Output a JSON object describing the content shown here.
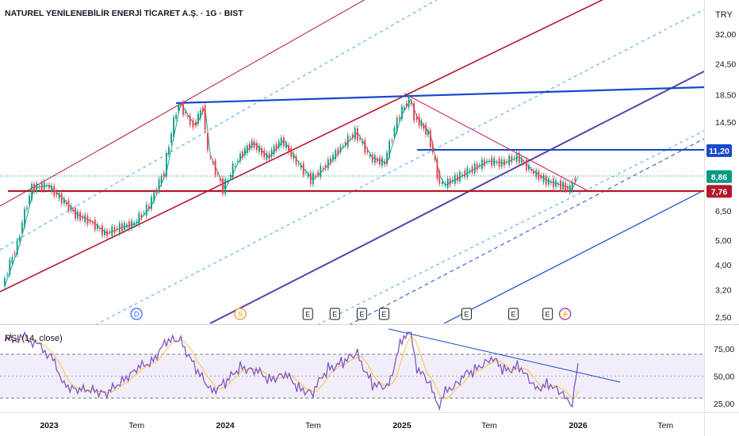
{
  "header": {
    "symbol_title": "NATUREL YENİLENEBİLİR ENERJİ TİCARET A.Ş. · 1G · BIST",
    "currency": "TRY"
  },
  "chart_data": {
    "type": "line",
    "price_axis": {
      "scale": "log",
      "ticks": [
        "32,00",
        "24,50",
        "18,50",
        "14,50",
        "11,20",
        "8,86",
        "7,76",
        "6,50",
        "5,00",
        "4,00",
        "3,20",
        "2,50"
      ],
      "tick_values": [
        32.0,
        24.5,
        18.5,
        14.5,
        11.2,
        8.86,
        7.76,
        6.5,
        5.0,
        4.0,
        3.2,
        2.5
      ]
    },
    "price_badges": [
      {
        "label": "11,20",
        "value": 11.2,
        "color": "#1848cc"
      },
      {
        "label": "8,86",
        "value": 8.86,
        "color": "#089981"
      },
      {
        "label": "7,76",
        "value": 7.76,
        "color": "#b2182b"
      }
    ],
    "time_axis": {
      "labels": [
        "2023",
        "Tem",
        "2024",
        "Tem",
        "2025",
        "Tem",
        "2026",
        "Tem"
      ],
      "dates": [
        "2023-01",
        "2023-07",
        "2024-01",
        "2024-07",
        "2025-01",
        "2025-07",
        "2026-01",
        "2026-07"
      ]
    },
    "price_series": {
      "name": "NATUREL YENİLENEBİLİR ENERJİ TİCARET A.Ş.",
      "points": [
        [
          "2022-10-01",
          3.3
        ],
        [
          "2022-11-01",
          4.8
        ],
        [
          "2022-12-01",
          8.0
        ],
        [
          "2023-01-01",
          8.2
        ],
        [
          "2023-02-01",
          7.2
        ],
        [
          "2023-03-01",
          6.3
        ],
        [
          "2023-04-01",
          5.9
        ],
        [
          "2023-05-01",
          5.3
        ],
        [
          "2023-06-01",
          5.6
        ],
        [
          "2023-07-01",
          5.8
        ],
        [
          "2023-08-01",
          6.8
        ],
        [
          "2023-09-01",
          9.2
        ],
        [
          "2023-10-01",
          17.2
        ],
        [
          "2023-10-20",
          15.0
        ],
        [
          "2023-11-01",
          14.0
        ],
        [
          "2023-11-20",
          16.5
        ],
        [
          "2023-12-01",
          10.8
        ],
        [
          "2024-01-01",
          7.9
        ],
        [
          "2024-02-01",
          10.4
        ],
        [
          "2024-03-01",
          12.0
        ],
        [
          "2024-04-01",
          10.5
        ],
        [
          "2024-05-01",
          12.3
        ],
        [
          "2024-06-01",
          10.1
        ],
        [
          "2024-07-01",
          8.6
        ],
        [
          "2024-08-01",
          9.8
        ],
        [
          "2024-09-01",
          11.5
        ],
        [
          "2024-10-01",
          13.2
        ],
        [
          "2024-11-01",
          10.5
        ],
        [
          "2024-12-01",
          10.0
        ],
        [
          "2025-01-01",
          15.5
        ],
        [
          "2025-01-20",
          17.8
        ],
        [
          "2025-02-01",
          15.2
        ],
        [
          "2025-03-01",
          13.0
        ],
        [
          "2025-03-20",
          9.0
        ],
        [
          "2025-04-01",
          8.2
        ],
        [
          "2025-05-01",
          8.8
        ],
        [
          "2025-06-01",
          9.5
        ],
        [
          "2025-07-01",
          10.2
        ],
        [
          "2025-08-01",
          10.0
        ],
        [
          "2025-09-01",
          10.6
        ],
        [
          "2025-10-01",
          9.3
        ],
        [
          "2025-11-01",
          8.5
        ],
        [
          "2025-12-01",
          8.2
        ],
        [
          "2025-12-20",
          7.9
        ],
        [
          "2026-01-01",
          8.86
        ]
      ]
    },
    "markers": [
      {
        "label": "D",
        "date": "2023-07-01",
        "color": "#2962ff"
      },
      {
        "label": "S",
        "date": "2024-02-01",
        "color": "#f7931a"
      },
      {
        "label": "E",
        "date": "2024-06-20",
        "color": "#131722"
      },
      {
        "label": "E",
        "date": "2024-08-15",
        "color": "#131722"
      },
      {
        "label": "E",
        "date": "2024-10-10",
        "color": "#131722"
      },
      {
        "label": "E",
        "date": "2024-11-25",
        "color": "#131722"
      },
      {
        "label": "E",
        "date": "2025-05-15",
        "color": "#131722"
      },
      {
        "label": "E",
        "date": "2025-08-20",
        "color": "#131722"
      },
      {
        "label": "E",
        "date": "2025-10-30",
        "color": "#131722"
      },
      {
        "label": "⚡",
        "date": "2025-12-05",
        "color": "#9c27b0"
      }
    ],
    "rsi": {
      "title": "RSI (14, close)",
      "ticks": [
        "75,00",
        "50,00",
        "25,00"
      ],
      "tick_values": [
        75,
        50,
        25
      ],
      "band": [
        30,
        70
      ],
      "points": [
        [
          "2022-10-01",
          82
        ],
        [
          "2022-11-15",
          86
        ],
        [
          "2023-01-01",
          70
        ],
        [
          "2023-02-01",
          45
        ],
        [
          "2023-03-01",
          35
        ],
        [
          "2023-04-01",
          40
        ],
        [
          "2023-05-01",
          32
        ],
        [
          "2023-06-01",
          48
        ],
        [
          "2023-07-01",
          55
        ],
        [
          "2023-08-01",
          65
        ],
        [
          "2023-09-01",
          80
        ],
        [
          "2023-10-01",
          84
        ],
        [
          "2023-11-01",
          55
        ],
        [
          "2023-12-01",
          38
        ],
        [
          "2024-01-01",
          42
        ],
        [
          "2024-02-01",
          60
        ],
        [
          "2024-03-01",
          55
        ],
        [
          "2024-04-01",
          48
        ],
        [
          "2024-05-01",
          52
        ],
        [
          "2024-06-01",
          40
        ],
        [
          "2024-07-01",
          35
        ],
        [
          "2024-08-01",
          58
        ],
        [
          "2024-09-01",
          62
        ],
        [
          "2024-10-01",
          70
        ],
        [
          "2024-11-01",
          42
        ],
        [
          "2024-12-01",
          38
        ],
        [
          "2025-01-01",
          84
        ],
        [
          "2025-01-20",
          88
        ],
        [
          "2025-02-01",
          58
        ],
        [
          "2025-03-01",
          40
        ],
        [
          "2025-03-20",
          25
        ],
        [
          "2025-04-01",
          35
        ],
        [
          "2025-05-01",
          48
        ],
        [
          "2025-06-01",
          55
        ],
        [
          "2025-07-01",
          68
        ],
        [
          "2025-08-01",
          55
        ],
        [
          "2025-09-01",
          60
        ],
        [
          "2025-10-01",
          38
        ],
        [
          "2025-11-01",
          44
        ],
        [
          "2025-12-01",
          30
        ],
        [
          "2025-12-20",
          28
        ],
        [
          "2026-01-01",
          62
        ]
      ]
    },
    "grid": false,
    "legend": "none"
  }
}
